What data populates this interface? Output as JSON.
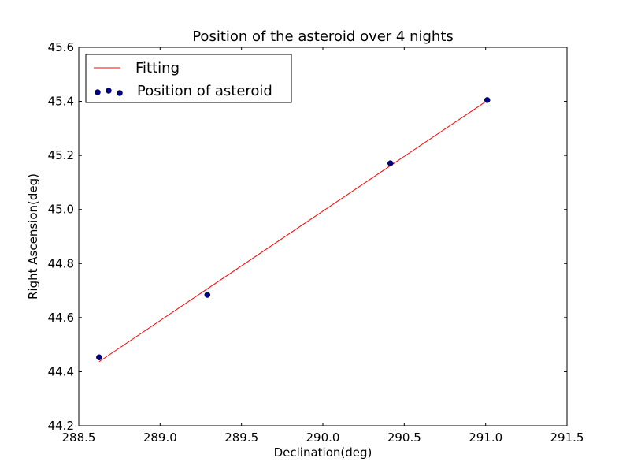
{
  "chart_data": {
    "type": "scatter",
    "title": "Position of the asteroid over 4 nights",
    "xlabel": "Declination(deg)",
    "ylabel": "Right Ascension(deg)",
    "xlim": [
      288.5,
      291.5
    ],
    "ylim": [
      44.2,
      45.6
    ],
    "xticks": [
      288.5,
      289.0,
      289.5,
      290.0,
      290.5,
      291.0,
      291.5
    ],
    "xtick_labels": [
      "288.5",
      "289.0",
      "289.5",
      "290.0",
      "290.5",
      "291.0",
      "291.5"
    ],
    "yticks": [
      44.2,
      44.4,
      44.6,
      44.8,
      45.0,
      45.2,
      45.4,
      45.6
    ],
    "ytick_labels": [
      "44.2",
      "44.4",
      "44.6",
      "44.8",
      "45.0",
      "45.2",
      "45.4",
      "45.6"
    ],
    "grid": false,
    "legend_position": "top-left",
    "series": [
      {
        "name": "Fitting",
        "kind": "line",
        "color": "#ff0000",
        "x": [
          288.625,
          291.01
        ],
        "y": [
          44.437,
          45.403
        ]
      },
      {
        "name": "Position of asteroid",
        "kind": "scatter",
        "color": "#00008b",
        "x": [
          288.625,
          289.29,
          290.415,
          291.01
        ],
        "y": [
          44.453,
          44.684,
          45.171,
          45.405
        ]
      }
    ]
  }
}
